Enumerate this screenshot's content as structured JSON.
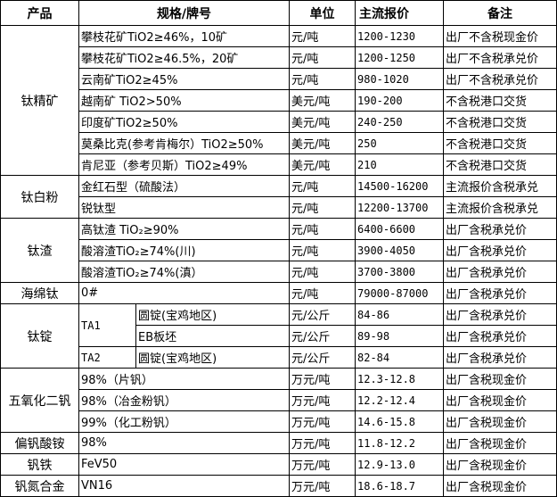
{
  "headers": [
    "产品",
    "规格/牌号",
    "单位",
    "主流报价",
    "备注"
  ],
  "groups": [
    {
      "product": "钛精矿",
      "rows": [
        {
          "spec": "攀枝花矿TiO2≥46%，10矿",
          "unit": "元/吨",
          "price": "1200-1230",
          "note": "出厂不含税现金价"
        },
        {
          "spec": "攀枝花矿TiO2≥46.5%，20矿",
          "unit": "元/吨",
          "price": "1200-1250",
          "note": "出厂不含税承兑价"
        },
        {
          "spec": "云南矿TiO2≥45%",
          "unit": "元/吨",
          "price": "980-1020",
          "note": "出厂不含税承兑价"
        },
        {
          "spec": "越南矿 TiO2>50%",
          "unit": "美元/吨",
          "price": "190-200",
          "note": "不含税港口交货"
        },
        {
          "spec": "印度矿TiO2≥50%",
          "unit": "美元/吨",
          "price": "240-250",
          "note": "不含税港口交货"
        },
        {
          "spec": "莫桑比克(参考肯梅尔）TiO2≥50%",
          "unit": "美元/吨",
          "price": "250",
          "note": "不含税港口交货"
        },
        {
          "spec": "肯尼亚（参考贝斯）TiO2≥49%",
          "unit": "美元/吨",
          "price": "210",
          "note": "不含税港口交货"
        }
      ]
    },
    {
      "product": "钛白粉",
      "rows": [
        {
          "spec": "金红石型（硫酸法）",
          "unit": "元/吨",
          "price": "14500-16200",
          "note": "主流报价含税承兑"
        },
        {
          "spec": "锐钛型",
          "unit": "元/吨",
          "price": "12200-13700",
          "note": "主流报价含税承兑"
        }
      ]
    },
    {
      "product": "钛渣",
      "rows": [
        {
          "spec": "高钛渣 TiO₂≥90%",
          "unit": "元/吨",
          "price": "6400-6600",
          "note": "出厂含税承兑价"
        },
        {
          "spec": "酸溶渣TiO₂≥74%(川)",
          "unit": "元/吨",
          "price": "3900-4050",
          "note": "出厂含税承兑价"
        },
        {
          "spec": "酸溶渣TiO₂≥74%(滇）",
          "unit": "元/吨",
          "price": "3700-3800",
          "note": "出厂含税承兑价"
        }
      ]
    },
    {
      "product": "海绵钛",
      "rows": [
        {
          "spec": "0#",
          "unit": "元/吨",
          "price": "79000-87000",
          "note": "出厂含税承兑价"
        }
      ]
    },
    {
      "product": "钛锭",
      "rows": [
        {
          "grade": "TA1",
          "grade_span": 2,
          "spec": "圆锭(宝鸡地区)",
          "unit": "元/公斤",
          "price": "84-86",
          "note": "出厂含税承兑价"
        },
        {
          "spec": "EB板坯",
          "unit": "元/公斤",
          "price": "89-98",
          "note": "出厂含税承兑价"
        },
        {
          "grade": "TA2",
          "grade_span": 1,
          "spec": "圆锭(宝鸡地区)",
          "unit": "元/公斤",
          "price": "82-84",
          "note": "出厂含税承兑价"
        }
      ]
    },
    {
      "product": "五氧化二钒",
      "rows": [
        {
          "spec": "98%（片钒）",
          "unit": "万元/吨",
          "price": "12.3-12.8",
          "note": "出厂含税现金价"
        },
        {
          "spec": "98%（冶金粉钒）",
          "unit": "万元/吨",
          "price": "12.2-12.4",
          "note": "出厂含税现金价"
        },
        {
          "spec": "99%（化工粉钒）",
          "unit": "万元/吨",
          "price": "14.6-15.8",
          "note": "出厂含税现金价"
        }
      ]
    },
    {
      "product": "偏钒酸铵",
      "rows": [
        {
          "spec": "98%",
          "unit": "万元/吨",
          "price": "11.8-12.2",
          "note": "出厂含税现金价"
        }
      ]
    },
    {
      "product": "钒铁",
      "rows": [
        {
          "spec": "FeV50",
          "unit": "万元/吨",
          "price": "12.9-13.0",
          "note": "出厂含税现金价"
        }
      ]
    },
    {
      "product": "钒氮合金",
      "rows": [
        {
          "spec": "VN16",
          "unit": "万元/吨",
          "price": "18.6-18.7",
          "note": "出厂含税现金价"
        }
      ]
    }
  ]
}
